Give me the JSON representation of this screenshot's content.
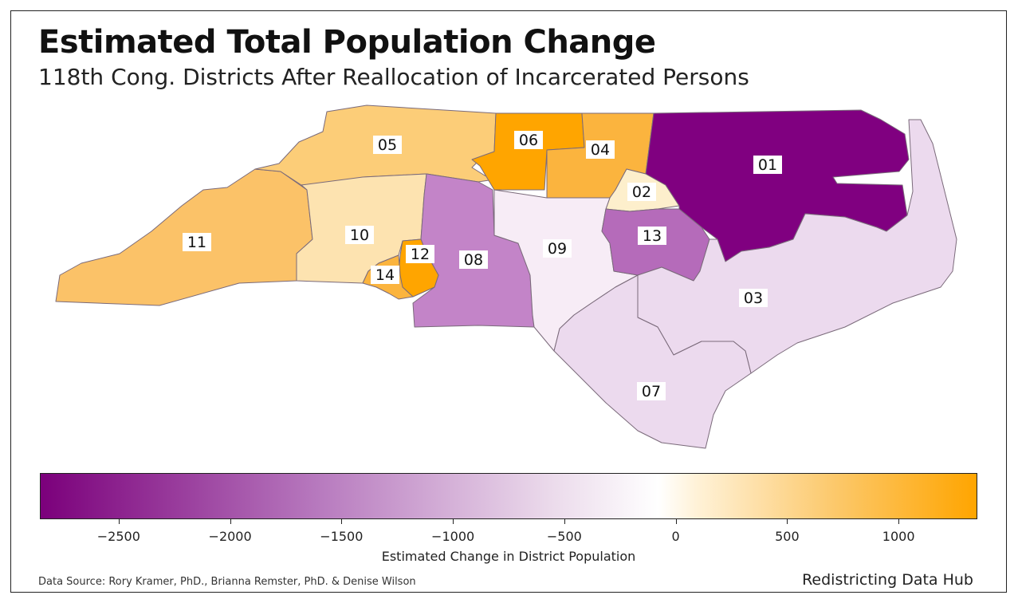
{
  "title": "Estimated Total Population Change",
  "subtitle": "118th Cong. Districts After Reallocation of Incarcerated Persons",
  "districts": [
    {
      "id": "01",
      "color": "#800080"
    },
    {
      "id": "02",
      "color": "#fdefcc"
    },
    {
      "id": "03",
      "color": "#ecdaee"
    },
    {
      "id": "04",
      "color": "#fbb43e"
    },
    {
      "id": "05",
      "color": "#fccd78"
    },
    {
      "id": "06",
      "color": "#ffa500"
    },
    {
      "id": "07",
      "color": "#ecdaee"
    },
    {
      "id": "08",
      "color": "#c384c8"
    },
    {
      "id": "09",
      "color": "#f7ecf6"
    },
    {
      "id": "10",
      "color": "#fde3b0"
    },
    {
      "id": "11",
      "color": "#fbc268"
    },
    {
      "id": "12",
      "color": "#ffa500"
    },
    {
      "id": "13",
      "color": "#b56bba"
    },
    {
      "id": "14",
      "color": "#fbb43e"
    }
  ],
  "legend": {
    "axis_title": "Estimated Change in District Population",
    "min": -2850,
    "max": 1350,
    "ticks": [
      "−2500",
      "−2000",
      "−1500",
      "−1000",
      "−500",
      "0",
      "500",
      "1000"
    ],
    "tick_values": [
      -2500,
      -2000,
      -1500,
      -1000,
      -500,
      0,
      500,
      1000
    ]
  },
  "footer": {
    "source": "Data Source: Rory Kramer, PhD., Brianna Remster, PhD. & Denise Wilson",
    "brand": "Redistricting Data Hub"
  }
}
